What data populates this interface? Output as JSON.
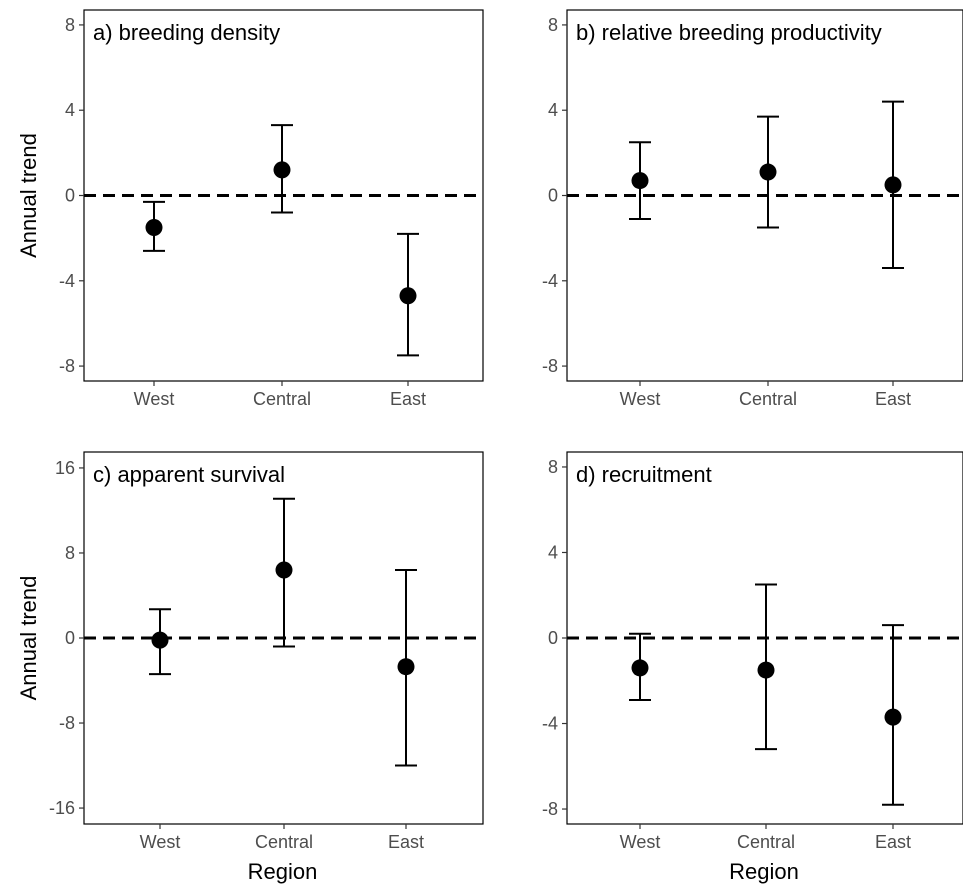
{
  "chart_data": [
    {
      "type": "scatter",
      "title": "a) breeding density",
      "xlabel": "",
      "ylabel": "Annual trend",
      "categories": [
        "West",
        "Central",
        "East"
      ],
      "yticks": [
        -8,
        -4,
        0,
        4,
        8
      ],
      "ylim": [
        -8.7,
        8.7
      ],
      "reference_line": 0,
      "points": [
        {
          "x": "West",
          "y": -1.5,
          "lower": -2.6,
          "upper": -0.3
        },
        {
          "x": "Central",
          "y": 1.2,
          "lower": -0.8,
          "upper": 3.3
        },
        {
          "x": "East",
          "y": -4.7,
          "lower": -7.5,
          "upper": -1.8
        }
      ]
    },
    {
      "type": "scatter",
      "title": "b) relative breeding productivity",
      "xlabel": "",
      "ylabel": "",
      "categories": [
        "West",
        "Central",
        "East"
      ],
      "yticks": [
        -8,
        -4,
        0,
        4,
        8
      ],
      "ylim": [
        -8.7,
        8.7
      ],
      "reference_line": 0,
      "points": [
        {
          "x": "West",
          "y": 0.7,
          "lower": -1.1,
          "upper": 2.5
        },
        {
          "x": "Central",
          "y": 1.1,
          "lower": -1.5,
          "upper": 3.7
        },
        {
          "x": "East",
          "y": 0.5,
          "lower": -3.4,
          "upper": 4.4
        }
      ]
    },
    {
      "type": "scatter",
      "title": "c) apparent survival",
      "xlabel": "Region",
      "ylabel": "Annual trend",
      "categories": [
        "West",
        "Central",
        "East"
      ],
      "yticks": [
        -16,
        -8,
        0,
        8,
        16
      ],
      "ylim": [
        -17.5,
        17.5
      ],
      "reference_line": 0,
      "points": [
        {
          "x": "West",
          "y": -0.2,
          "lower": -3.4,
          "upper": 2.7
        },
        {
          "x": "Central",
          "y": 6.4,
          "lower": -0.8,
          "upper": 13.1
        },
        {
          "x": "East",
          "y": -2.7,
          "lower": -12.0,
          "upper": 6.4
        }
      ]
    },
    {
      "type": "scatter",
      "title": "d) recruitment",
      "xlabel": "Region",
      "ylabel": "",
      "categories": [
        "West",
        "Central",
        "East"
      ],
      "yticks": [
        -8,
        -4,
        0,
        4,
        8
      ],
      "ylim": [
        -8.7,
        8.7
      ],
      "reference_line": 0,
      "points": [
        {
          "x": "West",
          "y": -1.4,
          "lower": -2.9,
          "upper": 0.2
        },
        {
          "x": "Central",
          "y": -1.5,
          "lower": -5.2,
          "upper": 2.5
        },
        {
          "x": "East",
          "y": -3.7,
          "lower": -7.8,
          "upper": 0.6
        }
      ]
    }
  ]
}
